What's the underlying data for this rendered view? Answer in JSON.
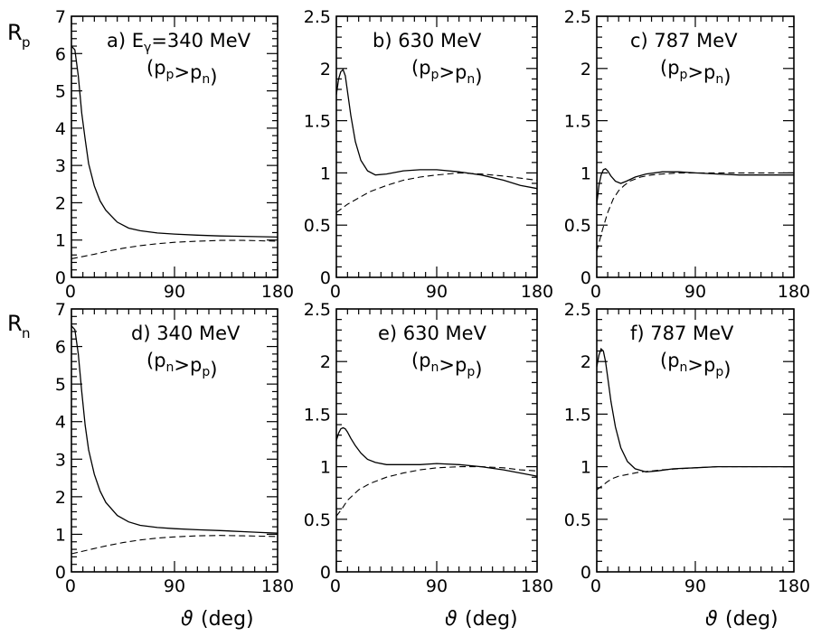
{
  "figure": {
    "ylabel_top": "R",
    "ylabel_top_sub": "p",
    "ylabel_bottom": "R",
    "ylabel_bottom_sub": "n",
    "xlabel_symbol": "ϑ",
    "xlabel_unit": "(deg)"
  },
  "chart_data": [
    {
      "type": "line",
      "id": "a",
      "title_prefix": "a) E",
      "title_sub": "γ",
      "title_suffix": "=340 MeV",
      "title_line2": "(p_p>p_n)",
      "xlim": [
        0,
        180
      ],
      "ylim": [
        0,
        7
      ],
      "xticks": [
        "0",
        "90",
        "180"
      ],
      "yticks": [
        "0",
        "1",
        "2",
        "3",
        "4",
        "5",
        "6",
        "7"
      ],
      "series": [
        {
          "name": "solid",
          "x": [
            0,
            3,
            6,
            9,
            12,
            15,
            20,
            25,
            30,
            40,
            50,
            60,
            75,
            90,
            110,
            130,
            150,
            165,
            180
          ],
          "y": [
            6.2,
            6.1,
            5.4,
            4.4,
            3.7,
            3.05,
            2.45,
            2.05,
            1.8,
            1.48,
            1.32,
            1.25,
            1.19,
            1.16,
            1.13,
            1.11,
            1.1,
            1.09,
            1.08
          ]
        },
        {
          "name": "dashed",
          "x": [
            0,
            10,
            20,
            30,
            45,
            60,
            75,
            90,
            110,
            130,
            150,
            165,
            180
          ],
          "y": [
            0.5,
            0.56,
            0.62,
            0.69,
            0.78,
            0.85,
            0.9,
            0.94,
            0.97,
            0.99,
            0.99,
            0.98,
            0.97
          ]
        }
      ]
    },
    {
      "type": "line",
      "id": "b",
      "title": "b) 630 MeV",
      "title_line2": "(p_p>p_n)",
      "xlim": [
        0,
        180
      ],
      "ylim": [
        0,
        2.5
      ],
      "xticks": [
        "0",
        "90",
        "180"
      ],
      "yticks": [
        "0",
        "0.5",
        "1",
        "1.5",
        "2",
        "2.5"
      ],
      "series": [
        {
          "name": "solid",
          "x": [
            0,
            2,
            4,
            6,
            8,
            10,
            13,
            17,
            22,
            28,
            35,
            45,
            60,
            75,
            90,
            110,
            130,
            150,
            165,
            180
          ],
          "y": [
            1.75,
            1.9,
            1.97,
            1.99,
            1.93,
            1.78,
            1.55,
            1.3,
            1.12,
            1.02,
            0.98,
            0.99,
            1.02,
            1.03,
            1.03,
            1.01,
            0.98,
            0.93,
            0.88,
            0.85
          ]
        },
        {
          "name": "dashed",
          "x": [
            0,
            10,
            20,
            30,
            45,
            60,
            75,
            90,
            110,
            130,
            150,
            165,
            180
          ],
          "y": [
            0.62,
            0.7,
            0.76,
            0.82,
            0.88,
            0.93,
            0.96,
            0.98,
            1.0,
            0.99,
            0.97,
            0.95,
            0.93
          ]
        }
      ]
    },
    {
      "type": "line",
      "id": "c",
      "title": "c) 787 MeV",
      "title_line2": "(p_p>p_n)",
      "xlim": [
        0,
        180
      ],
      "ylim": [
        0,
        2.5
      ],
      "xticks": [
        "0",
        "90",
        "180"
      ],
      "yticks": [
        "0",
        "0.5",
        "1",
        "1.5",
        "2",
        "2.5"
      ],
      "series": [
        {
          "name": "solid",
          "x": [
            0,
            2,
            4,
            6,
            8,
            10,
            13,
            17,
            22,
            27,
            35,
            45,
            60,
            75,
            90,
            110,
            130,
            150,
            165,
            180
          ],
          "y": [
            0.7,
            0.88,
            0.98,
            1.03,
            1.04,
            1.02,
            0.97,
            0.92,
            0.9,
            0.92,
            0.96,
            0.99,
            1.01,
            1.01,
            1.0,
            0.99,
            0.98,
            0.98,
            0.98,
            0.98
          ]
        },
        {
          "name": "dashed",
          "x": [
            0,
            5,
            10,
            15,
            20,
            25,
            30,
            40,
            50,
            60,
            75,
            90,
            110,
            130,
            150,
            180
          ],
          "y": [
            0.25,
            0.45,
            0.62,
            0.75,
            0.83,
            0.88,
            0.92,
            0.96,
            0.98,
            0.99,
            1.0,
            1.0,
            1.0,
            1.0,
            1.0,
            1.0
          ]
        }
      ]
    },
    {
      "type": "line",
      "id": "d",
      "title": "d) 340 MeV",
      "title_line2": "(p_n>p_p)",
      "xlim": [
        0,
        180
      ],
      "ylim": [
        0,
        7
      ],
      "xticks": [
        "0",
        "90",
        "180"
      ],
      "yticks": [
        "0",
        "1",
        "2",
        "3",
        "4",
        "5",
        "6",
        "7"
      ],
      "series": [
        {
          "name": "solid",
          "x": [
            0,
            3,
            6,
            9,
            12,
            15,
            20,
            25,
            30,
            40,
            50,
            60,
            75,
            90,
            110,
            130,
            150,
            165,
            180
          ],
          "y": [
            6.55,
            6.45,
            5.8,
            4.8,
            3.9,
            3.25,
            2.6,
            2.15,
            1.85,
            1.5,
            1.33,
            1.24,
            1.18,
            1.15,
            1.12,
            1.1,
            1.07,
            1.05,
            1.03
          ]
        },
        {
          "name": "dashed",
          "x": [
            0,
            10,
            20,
            30,
            45,
            60,
            75,
            90,
            110,
            130,
            150,
            165,
            180
          ],
          "y": [
            0.48,
            0.55,
            0.62,
            0.69,
            0.78,
            0.85,
            0.9,
            0.93,
            0.96,
            0.97,
            0.96,
            0.95,
            0.94
          ]
        }
      ]
    },
    {
      "type": "line",
      "id": "e",
      "title": "e) 630 MeV",
      "title_line2": "(p_n>p_p)",
      "xlim": [
        0,
        180
      ],
      "ylim": [
        0,
        2.5
      ],
      "xticks": [
        "0",
        "90",
        "180"
      ],
      "yticks": [
        "0",
        "0.5",
        "1",
        "1.5",
        "2",
        "2.5"
      ],
      "series": [
        {
          "name": "solid",
          "x": [
            0,
            2,
            4,
            6,
            8,
            10,
            13,
            17,
            22,
            28,
            35,
            45,
            60,
            75,
            90,
            110,
            130,
            150,
            165,
            180
          ],
          "y": [
            1.25,
            1.32,
            1.36,
            1.37,
            1.36,
            1.33,
            1.27,
            1.2,
            1.13,
            1.07,
            1.04,
            1.02,
            1.02,
            1.02,
            1.03,
            1.02,
            1.0,
            0.97,
            0.94,
            0.91
          ]
        },
        {
          "name": "dashed",
          "x": [
            0,
            5,
            10,
            20,
            30,
            45,
            60,
            75,
            90,
            110,
            130,
            150,
            165,
            180
          ],
          "y": [
            0.53,
            0.6,
            0.68,
            0.78,
            0.84,
            0.9,
            0.94,
            0.97,
            0.99,
            1.0,
            1.0,
            0.99,
            0.97,
            0.96
          ]
        }
      ]
    },
    {
      "type": "line",
      "id": "f",
      "title": "f) 787 MeV",
      "title_line2": "(p_n>p_p)",
      "xlim": [
        0,
        180
      ],
      "ylim": [
        0,
        2.5
      ],
      "xticks": [
        "0",
        "90",
        "180"
      ],
      "yticks": [
        "0",
        "0.5",
        "1",
        "1.5",
        "2",
        "2.5"
      ],
      "series": [
        {
          "name": "solid",
          "x": [
            0,
            2,
            4,
            6,
            8,
            10,
            13,
            17,
            22,
            28,
            35,
            45,
            55,
            70,
            90,
            110,
            130,
            150,
            180
          ],
          "y": [
            1.95,
            2.06,
            2.12,
            2.1,
            2.0,
            1.85,
            1.62,
            1.38,
            1.18,
            1.05,
            0.98,
            0.95,
            0.96,
            0.98,
            0.99,
            1.0,
            1.0,
            1.0,
            1.0
          ]
        },
        {
          "name": "dashed",
          "x": [
            0,
            5,
            10,
            15,
            20,
            25,
            30,
            40,
            50,
            60,
            75,
            90,
            110,
            130,
            150,
            180
          ],
          "y": [
            0.78,
            0.82,
            0.86,
            0.89,
            0.91,
            0.92,
            0.93,
            0.95,
            0.96,
            0.97,
            0.98,
            0.99,
            1.0,
            1.0,
            1.0,
            1.0
          ]
        }
      ]
    }
  ]
}
